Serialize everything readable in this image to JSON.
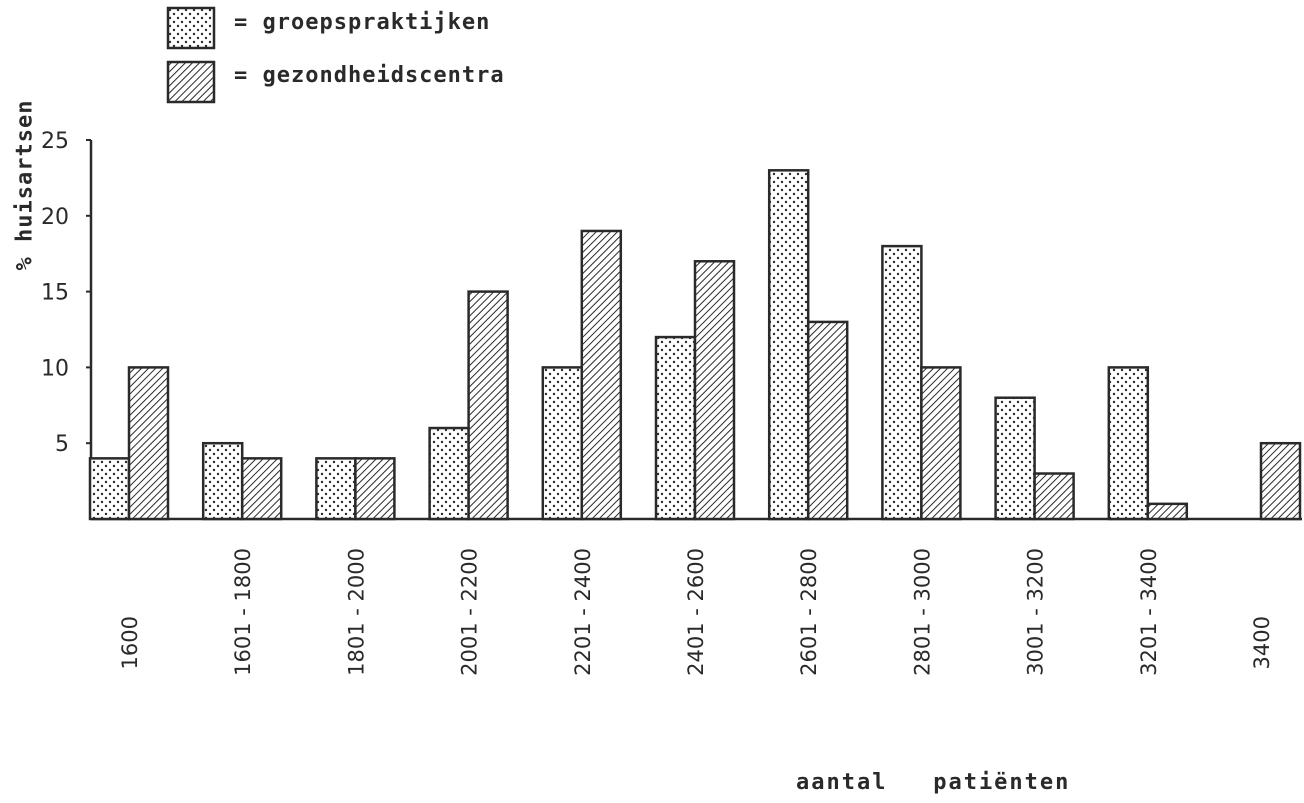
{
  "legend": {
    "items": [
      {
        "label": "= groepspraktijken",
        "pattern": "dots"
      },
      {
        "label": "= gezondheidscentra",
        "pattern": "hatch"
      }
    ]
  },
  "chart_data": {
    "type": "bar",
    "ylabel": "% huisartsen",
    "xlabel": "aantal   patiënten",
    "ylim": [
      0,
      25
    ],
    "yticks": [
      5,
      10,
      15,
      20,
      25
    ],
    "grid": false,
    "legend_position": "top-left",
    "categories": [
      "1600",
      "1601 - 1800",
      "1801 - 2000",
      "2001 - 2200",
      "2201 - 2400",
      "2401 - 2600",
      "2601 - 2800",
      "2801 - 3000",
      "3001 - 3200",
      "3201 - 3400",
      "3400"
    ],
    "series": [
      {
        "name": "groepspraktijken",
        "pattern": "dots",
        "values": [
          4,
          5,
          4,
          6,
          10,
          12,
          23,
          18,
          8,
          10,
          0
        ]
      },
      {
        "name": "gezondheidscentra",
        "pattern": "hatch",
        "values": [
          10,
          4,
          4,
          15,
          19,
          17,
          13,
          10,
          3,
          1,
          5
        ]
      }
    ]
  },
  "colors": {
    "ink": "#2a2a2a",
    "background": "#ffffff"
  }
}
